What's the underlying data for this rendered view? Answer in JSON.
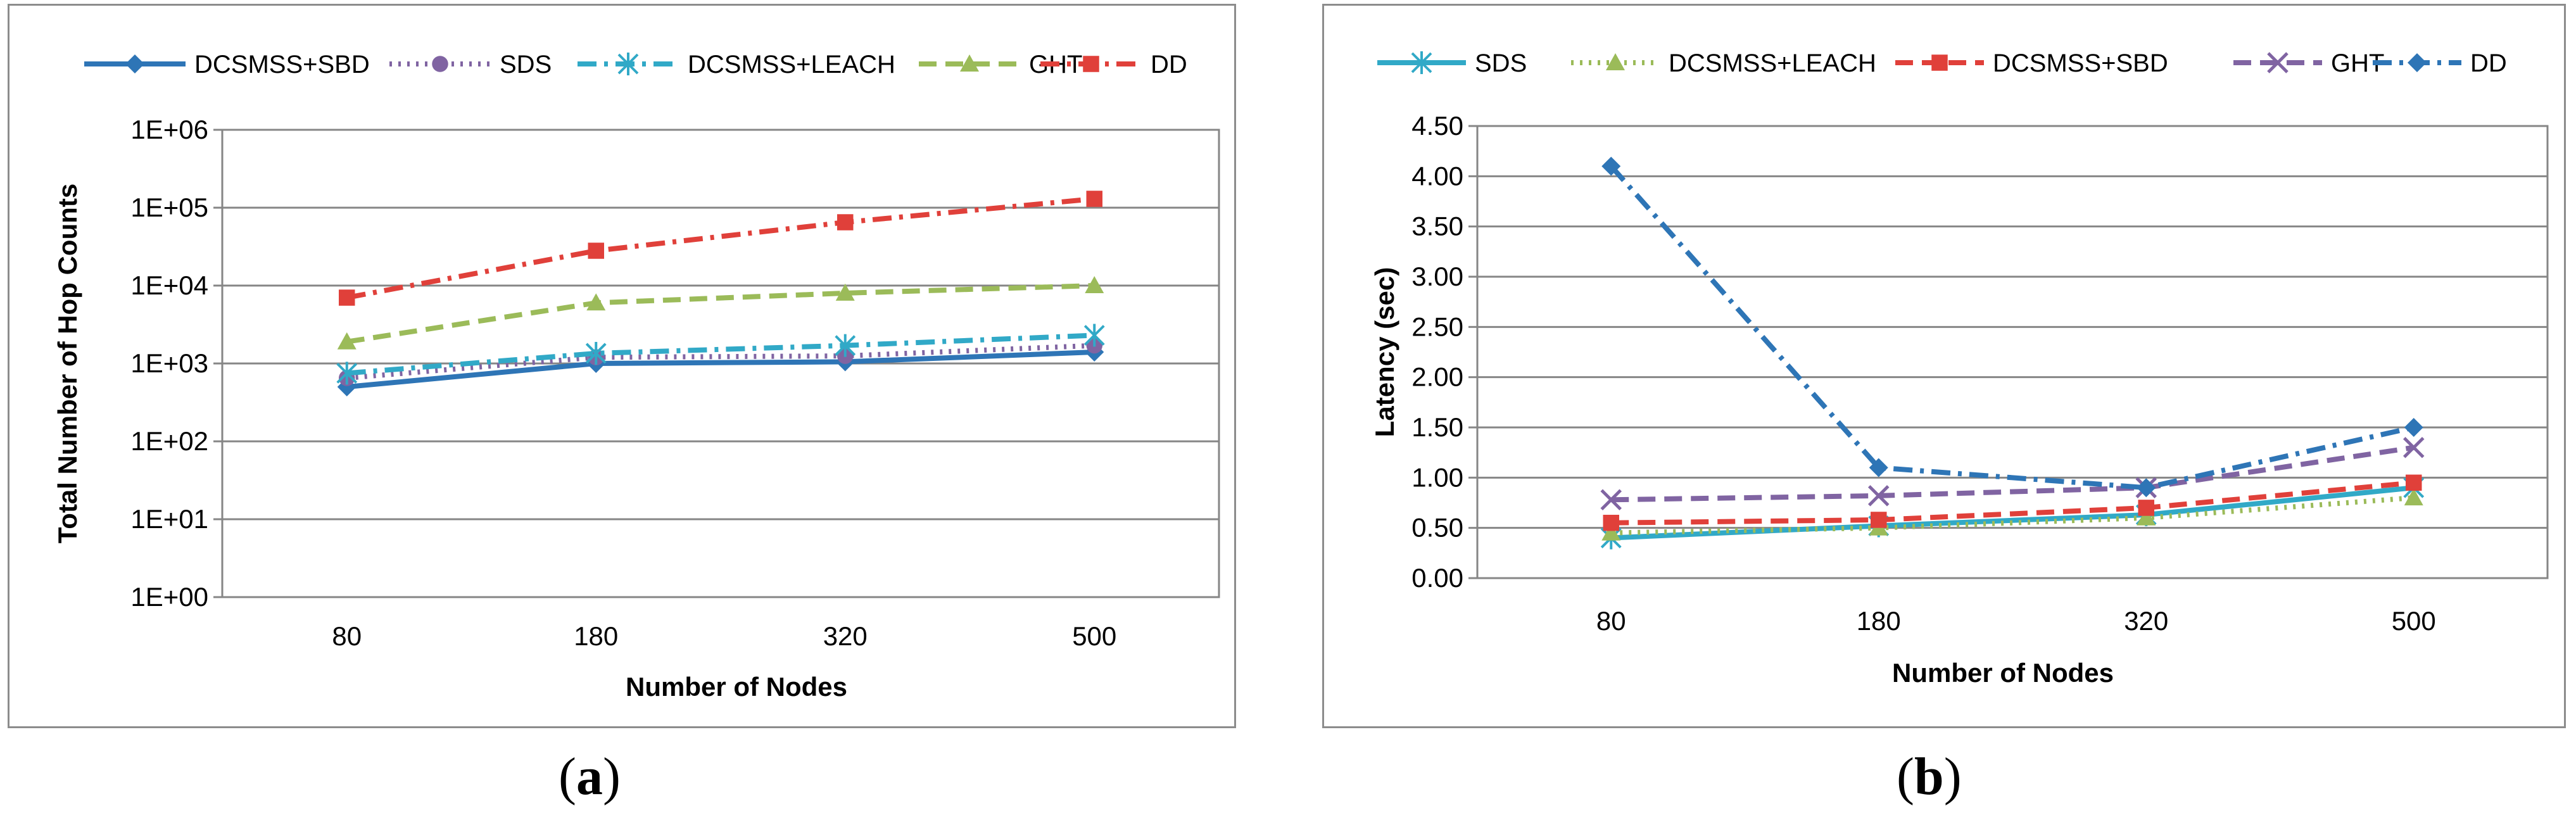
{
  "charts": [
    {
      "caption_letter": "a",
      "chart_data": {
        "type": "line",
        "title": "",
        "xlabel": "Number of Nodes",
        "ylabel": "Total Number of Hop Counts",
        "categories": [
          "80",
          "180",
          "320",
          "500"
        ],
        "y_scale": "log",
        "ylim": [
          1,
          1000000
        ],
        "y_ticks": [
          {
            "value": 1,
            "label": "1E+00"
          },
          {
            "value": 10,
            "label": "1E+01"
          },
          {
            "value": 100,
            "label": "1E+02"
          },
          {
            "value": 1000,
            "label": "1E+03"
          },
          {
            "value": 10000,
            "label": "1E+04"
          },
          {
            "value": 100000,
            "label": "1E+05"
          },
          {
            "value": 1000000,
            "label": "1E+06"
          }
        ],
        "grid": true,
        "legend_position": "top",
        "series": [
          {
            "name": "DCSMSS+SBD",
            "values": [
              500,
              1000,
              1050,
              1400
            ],
            "color": "#2e75b6",
            "dash": "solid",
            "marker": "diamond"
          },
          {
            "name": "SDS",
            "values": [
              650,
              1200,
              1250,
              1700
            ],
            "color": "#8064a2",
            "dash": "dot",
            "marker": "circle"
          },
          {
            "name": "DCSMSS+LEACH",
            "values": [
              750,
              1350,
              1700,
              2300
            ],
            "color": "#31a9c7",
            "dash": "dashdot",
            "marker": "star"
          },
          {
            "name": "GHT",
            "values": [
              1900,
              6000,
              8000,
              10000
            ],
            "color": "#9bbb59",
            "dash": "dash",
            "marker": "triangle"
          },
          {
            "name": "DD",
            "values": [
              7000,
              28000,
              65000,
              130000
            ],
            "color": "#e0403a",
            "dash": "dashdot",
            "marker": "square"
          }
        ]
      }
    },
    {
      "caption_letter": "b",
      "chart_data": {
        "type": "line",
        "title": "",
        "xlabel": "Number of Nodes",
        "ylabel": "Latency (sec)",
        "categories": [
          "80",
          "180",
          "320",
          "500"
        ],
        "y_scale": "linear",
        "ylim": [
          0,
          4.5
        ],
        "y_ticks": [
          {
            "value": 0,
            "label": "0.00"
          },
          {
            "value": 0.5,
            "label": "0.50"
          },
          {
            "value": 1,
            "label": "1.00"
          },
          {
            "value": 1.5,
            "label": "1.50"
          },
          {
            "value": 2,
            "label": "2.00"
          },
          {
            "value": 2.5,
            "label": "2.50"
          },
          {
            "value": 3,
            "label": "3.00"
          },
          {
            "value": 3.5,
            "label": "3.50"
          },
          {
            "value": 4,
            "label": "4.00"
          },
          {
            "value": 4.5,
            "label": "4.50"
          }
        ],
        "grid": true,
        "legend_position": "top",
        "series": [
          {
            "name": "SDS",
            "values": [
              0.4,
              0.52,
              0.63,
              0.9
            ],
            "color": "#31a9c7",
            "dash": "solid",
            "marker": "star"
          },
          {
            "name": "DCSMSS+LEACH",
            "values": [
              0.45,
              0.5,
              0.6,
              0.8
            ],
            "color": "#9bbb59",
            "dash": "dot",
            "marker": "triangle"
          },
          {
            "name": "DCSMSS+SBD",
            "values": [
              0.55,
              0.58,
              0.7,
              0.95
            ],
            "color": "#e0403a",
            "dash": "dash",
            "marker": "square"
          },
          {
            "name": "GHT",
            "values": [
              0.78,
              0.82,
              0.9,
              1.3
            ],
            "color": "#8064a2",
            "dash": "dash",
            "marker": "x"
          },
          {
            "name": "DD",
            "values": [
              4.1,
              1.1,
              0.9,
              1.5
            ],
            "color": "#2e75b6",
            "dash": "dashdot",
            "marker": "diamond"
          }
        ]
      }
    }
  ]
}
